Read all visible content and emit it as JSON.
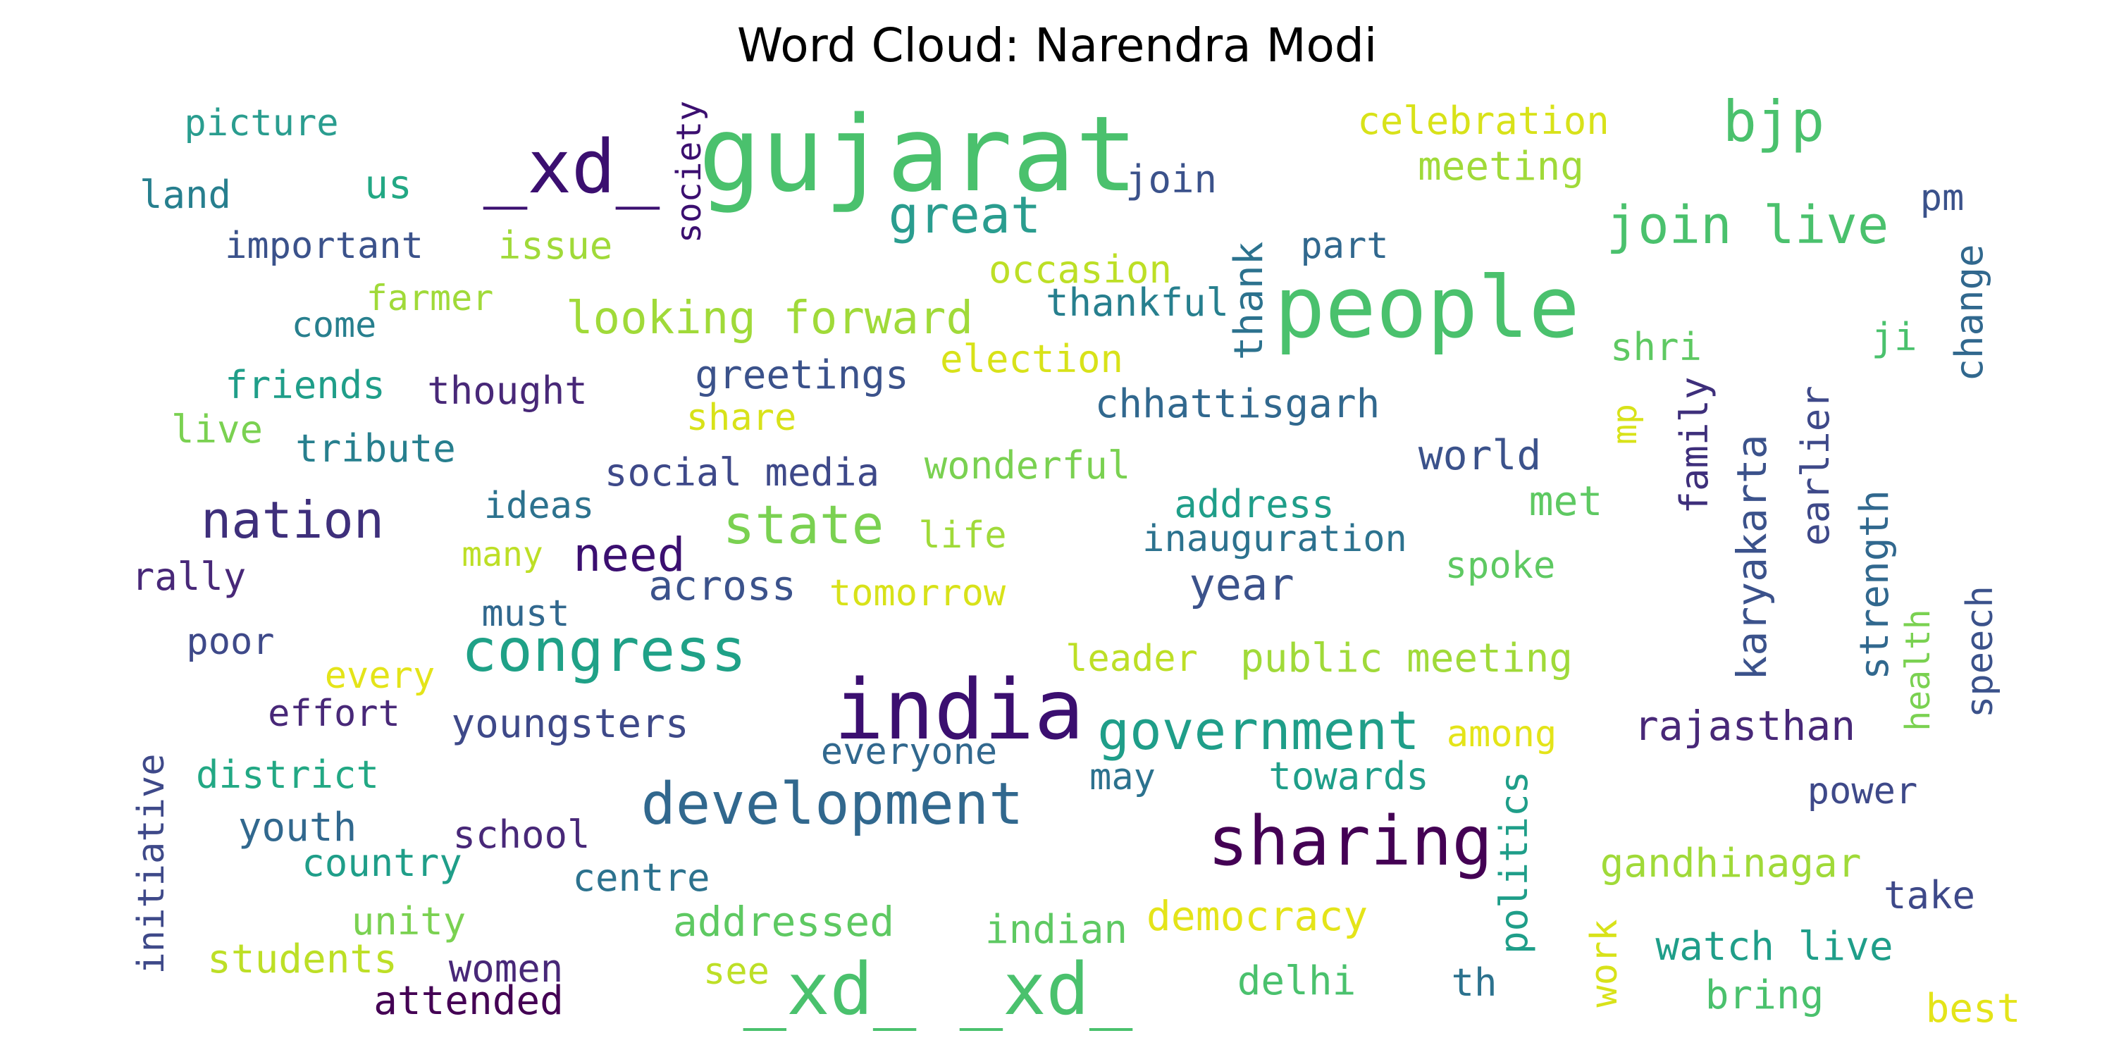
{
  "title": "Word Cloud: Narendra Modi",
  "words": [
    {
      "text": "gujarat",
      "color": "#4ac16d",
      "vertical": false
    },
    {
      "text": "people",
      "color": "#4ac16d",
      "vertical": false
    },
    {
      "text": "india",
      "color": "#3b0f70",
      "vertical": false
    },
    {
      "text": "_xd_ _xd_",
      "color": "#4ac16d",
      "vertical": false
    },
    {
      "text": "sharing",
      "color": "#440154",
      "vertical": false
    },
    {
      "text": "_xd_",
      "color": "#3b0f70",
      "vertical": false
    },
    {
      "text": "congress",
      "color": "#1fa187",
      "vertical": false
    },
    {
      "text": "development",
      "color": "#31688e",
      "vertical": false
    },
    {
      "text": "bjp",
      "color": "#4ac16d",
      "vertical": false
    },
    {
      "text": "join live",
      "color": "#4ac16d",
      "vertical": false
    },
    {
      "text": "great",
      "color": "#2a9d8f",
      "vertical": false
    },
    {
      "text": "government",
      "color": "#1f9e89",
      "vertical": false
    },
    {
      "text": "state",
      "color": "#7ad151",
      "vertical": false
    },
    {
      "text": "nation",
      "color": "#3e2f7b",
      "vertical": false
    },
    {
      "text": "looking forward",
      "color": "#a0da39",
      "vertical": false
    },
    {
      "text": "need",
      "color": "#3b0f70",
      "vertical": false
    },
    {
      "text": "year",
      "color": "#3b528b",
      "vertical": false
    },
    {
      "text": "world",
      "color": "#3b528b",
      "vertical": false
    },
    {
      "text": "celebration",
      "color": "#d8e219",
      "vertical": false
    },
    {
      "text": "meeting",
      "color": "#a0da39",
      "vertical": false
    },
    {
      "text": "picture",
      "color": "#2a9d8f",
      "vertical": false
    },
    {
      "text": "land",
      "color": "#277f8e",
      "vertical": false
    },
    {
      "text": "us",
      "color": "#22a884",
      "vertical": false
    },
    {
      "text": "join",
      "color": "#3b528b",
      "vertical": false
    },
    {
      "text": "pm",
      "color": "#3b528b",
      "vertical": false
    },
    {
      "text": "important",
      "color": "#3b528b",
      "vertical": false
    },
    {
      "text": "issue",
      "color": "#a0da39",
      "vertical": false
    },
    {
      "text": "occasion",
      "color": "#bddf26",
      "vertical": false
    },
    {
      "text": "part",
      "color": "#31688e",
      "vertical": false
    },
    {
      "text": "farmer",
      "color": "#a0da39",
      "vertical": false
    },
    {
      "text": "come",
      "color": "#277f8e",
      "vertical": false
    },
    {
      "text": "thankful",
      "color": "#277f8e",
      "vertical": false
    },
    {
      "text": "shri",
      "color": "#5ec962",
      "vertical": false
    },
    {
      "text": "ji",
      "color": "#4ac16d",
      "vertical": false
    },
    {
      "text": "greetings",
      "color": "#3b528b",
      "vertical": false
    },
    {
      "text": "election",
      "color": "#d8e219",
      "vertical": false
    },
    {
      "text": "friends",
      "color": "#1f9e89",
      "vertical": false
    },
    {
      "text": "thought",
      "color": "#482878",
      "vertical": false
    },
    {
      "text": "share",
      "color": "#d8e219",
      "vertical": false
    },
    {
      "text": "chhattisgarh",
      "color": "#31688e",
      "vertical": false
    },
    {
      "text": "live",
      "color": "#7ad151",
      "vertical": false
    },
    {
      "text": "tribute",
      "color": "#277f8e",
      "vertical": false
    },
    {
      "text": "social media",
      "color": "#3e4989",
      "vertical": false
    },
    {
      "text": "wonderful",
      "color": "#7ad151",
      "vertical": false
    },
    {
      "text": "ideas",
      "color": "#2c728e",
      "vertical": false
    },
    {
      "text": "address",
      "color": "#1f9e89",
      "vertical": false
    },
    {
      "text": "met",
      "color": "#5ec962",
      "vertical": false
    },
    {
      "text": "inauguration",
      "color": "#2c728e",
      "vertical": false
    },
    {
      "text": "many",
      "color": "#bddf26",
      "vertical": false
    },
    {
      "text": "life",
      "color": "#a0da39",
      "vertical": false
    },
    {
      "text": "spoke",
      "color": "#5ec962",
      "vertical": false
    },
    {
      "text": "rally",
      "color": "#482878",
      "vertical": false
    },
    {
      "text": "across",
      "color": "#3b528b",
      "vertical": false
    },
    {
      "text": "tomorrow",
      "color": "#d8e219",
      "vertical": false
    },
    {
      "text": "must",
      "color": "#31688e",
      "vertical": false
    },
    {
      "text": "poor",
      "color": "#3e4989",
      "vertical": false
    },
    {
      "text": "leader",
      "color": "#bddf26",
      "vertical": false
    },
    {
      "text": "public meeting",
      "color": "#a0da39",
      "vertical": false
    },
    {
      "text": "every",
      "color": "#e4e419",
      "vertical": false
    },
    {
      "text": "effort",
      "color": "#482878",
      "vertical": false
    },
    {
      "text": "youngsters",
      "color": "#3e4989",
      "vertical": false
    },
    {
      "text": "everyone",
      "color": "#31688e",
      "vertical": false
    },
    {
      "text": "among",
      "color": "#e4e419",
      "vertical": false
    },
    {
      "text": "rajasthan",
      "color": "#482878",
      "vertical": false
    },
    {
      "text": "district",
      "color": "#22a884",
      "vertical": false
    },
    {
      "text": "may",
      "color": "#2c728e",
      "vertical": false
    },
    {
      "text": "towards",
      "color": "#1f9e89",
      "vertical": false
    },
    {
      "text": "power",
      "color": "#3e4989",
      "vertical": false
    },
    {
      "text": "youth",
      "color": "#31688e",
      "vertical": false
    },
    {
      "text": "school",
      "color": "#482878",
      "vertical": false
    },
    {
      "text": "country",
      "color": "#1f9e89",
      "vertical": false
    },
    {
      "text": "centre",
      "color": "#2c728e",
      "vertical": false
    },
    {
      "text": "gandhinagar",
      "color": "#a0da39",
      "vertical": false
    },
    {
      "text": "take",
      "color": "#3e4989",
      "vertical": false
    },
    {
      "text": "unity",
      "color": "#7ad151",
      "vertical": false
    },
    {
      "text": "addressed",
      "color": "#5ec962",
      "vertical": false
    },
    {
      "text": "indian",
      "color": "#5ec962",
      "vertical": false
    },
    {
      "text": "democracy",
      "color": "#e4e419",
      "vertical": false
    },
    {
      "text": "watch live",
      "color": "#1f9e89",
      "vertical": false
    },
    {
      "text": "students",
      "color": "#bddf26",
      "vertical": false
    },
    {
      "text": "women",
      "color": "#482878",
      "vertical": false
    },
    {
      "text": "attended",
      "color": "#440154",
      "vertical": false
    },
    {
      "text": "see",
      "color": "#bddf26",
      "vertical": false
    },
    {
      "text": "delhi",
      "color": "#4ac16d",
      "vertical": false
    },
    {
      "text": "th",
      "color": "#2c728e",
      "vertical": false
    },
    {
      "text": "bring",
      "color": "#4ac16d",
      "vertical": false
    },
    {
      "text": "best",
      "color": "#e4e419",
      "vertical": false
    },
    {
      "text": "society",
      "color": "#3b0f70",
      "vertical": true
    },
    {
      "text": "thank",
      "color": "#2c728e",
      "vertical": true
    },
    {
      "text": "change",
      "color": "#31688e",
      "vertical": true
    },
    {
      "text": "mp",
      "color": "#d8e219",
      "vertical": true
    },
    {
      "text": "family",
      "color": "#3e2f7b",
      "vertical": true
    },
    {
      "text": "karyakarta",
      "color": "#3b528b",
      "vertical": true
    },
    {
      "text": "earlier",
      "color": "#3e4989",
      "vertical": true
    },
    {
      "text": "strength",
      "color": "#31688e",
      "vertical": true
    },
    {
      "text": "health",
      "color": "#7ad151",
      "vertical": true
    },
    {
      "text": "speech",
      "color": "#3b528b",
      "vertical": true
    },
    {
      "text": "initiative",
      "color": "#3e4989",
      "vertical": true
    },
    {
      "text": "politics",
      "color": "#1f9e89",
      "vertical": true
    },
    {
      "text": "work",
      "color": "#d8e219",
      "vertical": true
    }
  ]
}
